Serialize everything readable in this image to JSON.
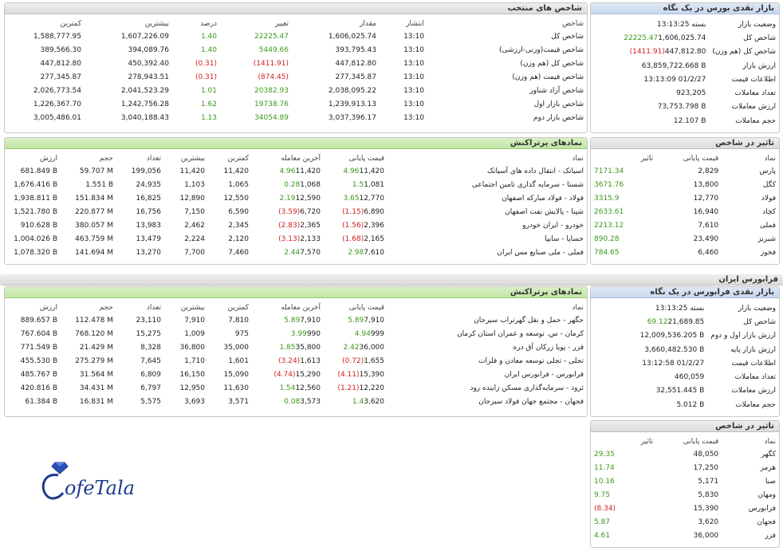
{
  "colors": {
    "positive": "#3a9a1a",
    "negative": "#d02020",
    "header_blue": "#c9d8ee",
    "header_green": "#c1e5a4",
    "header_gray": "#dcdcdc"
  },
  "bourse_snapshot": {
    "title": "بازار نقدی بورس در یک نگاه",
    "rows": [
      {
        "label": "وضعیت بازار",
        "value": "بسته 13:13:25",
        "change": ""
      },
      {
        "label": "شاخص کل",
        "value": "1,606,025.74",
        "change": "22225.47",
        "sign": "pos"
      },
      {
        "label": "شاخص کل (هم وزن)",
        "value": "447,812.80",
        "change": "(1411.91)",
        "sign": "neg"
      },
      {
        "label": "ارزش بازار",
        "value": "63,859,722.668 B",
        "change": ""
      },
      {
        "label": "اطلاعات قیمت",
        "value": "13:13:09 01/2/27",
        "change": ""
      },
      {
        "label": "تعداد معاملات",
        "value": "923,205",
        "change": ""
      },
      {
        "label": "ارزش معاملات",
        "value": "73,753.798 B",
        "change": ""
      },
      {
        "label": "حجم معاملات",
        "value": "12.107 B",
        "change": ""
      }
    ]
  },
  "selected_indices": {
    "title": "شاخص های منتخب",
    "headers": [
      "شاخص",
      "انتشار",
      "مقدار",
      "تغییر",
      "درصد",
      "بیشترین",
      "کمترین"
    ],
    "rows": [
      {
        "name": "شاخص کل",
        "time": "13:10",
        "value": "1,606,025.74",
        "change": "22225.47",
        "pct": "1.40",
        "high": "1,607,226.09",
        "low": "1,588,777.95",
        "sign": "pos"
      },
      {
        "name": "شاخص قیمت(وزنی-ارزشی)",
        "time": "13:10",
        "value": "393,795.43",
        "change": "5449.66",
        "pct": "1.40",
        "high": "394,089.76",
        "low": "389,566.30",
        "sign": "pos"
      },
      {
        "name": "شاخص کل (هم وزن)",
        "time": "13:10",
        "value": "447,812.80",
        "change": "(1411.91)",
        "pct": "(0.31)",
        "high": "450,392.40",
        "low": "447,812.80",
        "sign": "neg"
      },
      {
        "name": "شاخص قیمت (هم وزن)",
        "time": "13:10",
        "value": "277,345.87",
        "change": "(874.45)",
        "pct": "(0.31)",
        "high": "278,943.51",
        "low": "277,345.87",
        "sign": "neg"
      },
      {
        "name": "شاخص آزاد شناور",
        "time": "13:10",
        "value": "2,038,095.22",
        "change": "20382.93",
        "pct": "1.01",
        "high": "2,041,523.29",
        "low": "2,026,773.54",
        "sign": "pos"
      },
      {
        "name": "شاخص بازار اول",
        "time": "13:10",
        "value": "1,239,913.13",
        "change": "19738.76",
        "pct": "1.62",
        "high": "1,242,756.28",
        "low": "1,226,367.70",
        "sign": "pos"
      },
      {
        "name": "شاخص بازار دوم",
        "time": "13:10",
        "value": "3,037,396.17",
        "change": "34054.89",
        "pct": "1.13",
        "high": "3,040,188.43",
        "low": "3,005,486.01",
        "sign": "pos"
      }
    ]
  },
  "bourse_impact": {
    "title": "تاثیر در شاخص",
    "headers": [
      "نماد",
      "قیمت پایانی",
      "تاثیر"
    ],
    "rows": [
      {
        "symbol": "پارس",
        "price": "2,829",
        "impact": "7171.34",
        "sign": "pos"
      },
      {
        "symbol": "کگل",
        "price": "13,800",
        "impact": "3671.76",
        "sign": "pos"
      },
      {
        "symbol": "فولاد",
        "price": "12,770",
        "impact": "3315.9",
        "sign": "pos"
      },
      {
        "symbol": "کچاد",
        "price": "16,940",
        "impact": "2633.61",
        "sign": "pos"
      },
      {
        "symbol": "فملی",
        "price": "7,610",
        "impact": "2213.12",
        "sign": "pos"
      },
      {
        "symbol": "شبریز",
        "price": "23,490",
        "impact": "890.28",
        "sign": "pos"
      },
      {
        "symbol": "فخوز",
        "price": "6,460",
        "impact": "784.65",
        "sign": "pos"
      }
    ]
  },
  "bourse_active": {
    "title": "نمادهای پرتراکنش",
    "headers": [
      "نماد",
      "قیمت پایانی",
      "آخرین معامله",
      "کمترین",
      "بیشترین",
      "تعداد",
      "حجم",
      "ارزش"
    ],
    "rows": [
      {
        "name": "اسیاتک - انتقال داده های آسیاتک",
        "close": "11,420",
        "close_pct": "4.96",
        "last": "11,420",
        "last_pct": "4.96",
        "low": "11,420",
        "high": "11,420",
        "count": "199,056",
        "volume": "59.707 M",
        "value": "681.849 B",
        "cs": "pos",
        "ls": "pos"
      },
      {
        "name": "شستا - سرمایه گذاری تامین اجتماعی",
        "close": "1,081",
        "close_pct": "1.5",
        "last": "1,068",
        "last_pct": "0.28",
        "low": "1,065",
        "high": "1,103",
        "count": "24,935",
        "volume": "1.551 B",
        "value": "1,676.416 B",
        "cs": "pos",
        "ls": "pos"
      },
      {
        "name": "فولاد - فولاد مبارکه اصفهان",
        "close": "12,770",
        "close_pct": "3.65",
        "last": "12,590",
        "last_pct": "2.19",
        "low": "12,550",
        "high": "12,890",
        "count": "16,825",
        "volume": "151.834 M",
        "value": "1,938.811 B",
        "cs": "pos",
        "ls": "pos"
      },
      {
        "name": "شپنا - پالایش نفت اصفهان",
        "close": "6,890",
        "close_pct": "(1.15)",
        "last": "6,720",
        "last_pct": "(3.59)",
        "low": "6,590",
        "high": "7,150",
        "count": "16,756",
        "volume": "220.877 M",
        "value": "1,521.780 B",
        "cs": "neg",
        "ls": "neg"
      },
      {
        "name": "خودرو - ایران خودرو",
        "close": "2,396",
        "close_pct": "(1.56)",
        "last": "2,365",
        "last_pct": "(2.83)",
        "low": "2,345",
        "high": "2,462",
        "count": "13,983",
        "volume": "380.057 M",
        "value": "910.628 B",
        "cs": "neg",
        "ls": "neg"
      },
      {
        "name": "خساپا - سایپا",
        "close": "2,165",
        "close_pct": "(1.68)",
        "last": "2,133",
        "last_pct": "(3.13)",
        "low": "2,120",
        "high": "2,224",
        "count": "13,479",
        "volume": "463.759 M",
        "value": "1,004.026 B",
        "cs": "neg",
        "ls": "neg"
      },
      {
        "name": "فملی - ملی صنایع مس ایران",
        "close": "7,610",
        "close_pct": "2.98",
        "last": "7,570",
        "last_pct": "2.44",
        "low": "7,460",
        "high": "7,700",
        "count": "13,270",
        "volume": "141.694 M",
        "value": "1,078.320 B",
        "cs": "pos",
        "ls": "pos"
      }
    ]
  },
  "farabourse_bar": {
    "title": "فرابورس ایران"
  },
  "farabourse_snapshot": {
    "title": "بازار نقدی فرابورس در یک نگاه",
    "rows": [
      {
        "label": "وضعیت بازار",
        "value": "بسته 13:13:25",
        "change": ""
      },
      {
        "label": "شاخص کل",
        "value": "21,689.85",
        "change": "69.12",
        "sign": "pos"
      },
      {
        "label": "ارزش بازار اول و دوم",
        "value": "12,009,536.205 B",
        "change": ""
      },
      {
        "label": "ارزش بازار پایه",
        "value": "3,660,482.530 B",
        "change": ""
      },
      {
        "label": "اطلاعات قیمت",
        "value": "13:12:58 01/2/27",
        "change": ""
      },
      {
        "label": "تعداد معاملات",
        "value": "460,059",
        "change": ""
      },
      {
        "label": "ارزش معاملات",
        "value": "32,551.445 B",
        "change": ""
      },
      {
        "label": "حجم معاملات",
        "value": "5.012 B",
        "change": ""
      }
    ]
  },
  "farabourse_active": {
    "title": "نمادهای پرتراکنش",
    "headers": [
      "نماد",
      "قیمت پایانی",
      "آخرین معامله",
      "کمترین",
      "بیشترین",
      "تعداد",
      "حجم",
      "ارزش"
    ],
    "rows": [
      {
        "name": "حگهر - حمل و نقل گهرتراب سیرجان",
        "close": "7,910",
        "close_pct": "5.89",
        "last": "7,910",
        "last_pct": "5.89",
        "low": "7,810",
        "high": "7,910",
        "count": "23,110",
        "volume": "112.478 M",
        "value": "889.657 B",
        "cs": "pos",
        "ls": "pos"
      },
      {
        "name": "کرمان - س. توسعه و عمران استان کرمان",
        "close": "999",
        "close_pct": "4.94",
        "last": "990",
        "last_pct": "3.99",
        "low": "975",
        "high": "1,009",
        "count": "15,275",
        "volume": "768.120 M",
        "value": "767.604 B",
        "cs": "pos",
        "ls": "pos"
      },
      {
        "name": "فزر - پویا زرکان آق دره",
        "close": "36,000",
        "close_pct": "2.42",
        "last": "35,800",
        "last_pct": "1.85",
        "low": "35,000",
        "high": "36,800",
        "count": "8,328",
        "volume": "21.429 M",
        "value": "771.549 B",
        "cs": "pos",
        "ls": "pos"
      },
      {
        "name": "تجلی - تجلی توسعه معادن و فلزات",
        "close": "1,655",
        "close_pct": "(0.72)",
        "last": "1,613",
        "last_pct": "(3.24)",
        "low": "1,601",
        "high": "1,710",
        "count": "7,645",
        "volume": "275.279 M",
        "value": "455.530 B",
        "cs": "neg",
        "ls": "neg"
      },
      {
        "name": "فرابورس - فرابورس ایران",
        "close": "15,390",
        "close_pct": "(4.11)",
        "last": "15,290",
        "last_pct": "(4.74)",
        "low": "15,090",
        "high": "16,150",
        "count": "6,809",
        "volume": "31.564 M",
        "value": "485.767 B",
        "cs": "neg",
        "ls": "neg"
      },
      {
        "name": "ثرود - سرمایه‌گذاری مسکن زاینده رود",
        "close": "12,220",
        "close_pct": "(1.21)",
        "last": "12,560",
        "last_pct": "1.54",
        "low": "11,630",
        "high": "12,950",
        "count": "6,797",
        "volume": "34.431 M",
        "value": "420.816 B",
        "cs": "neg",
        "ls": "pos"
      },
      {
        "name": "فجهان - مجتمع جهان فولاد سیرجان",
        "close": "3,620",
        "close_pct": "1.4",
        "last": "3,573",
        "last_pct": "0.08",
        "low": "3,571",
        "high": "3,693",
        "count": "5,575",
        "volume": "16.831 M",
        "value": "61.384 B",
        "cs": "pos",
        "ls": "pos"
      }
    ]
  },
  "farabourse_impact": {
    "title": "تاثیر در شاخص",
    "headers": [
      "نماد",
      "قیمت پایانی",
      "تاثیر"
    ],
    "rows": [
      {
        "symbol": "کگهر",
        "price": "48,050",
        "impact": "29.35",
        "sign": "pos"
      },
      {
        "symbol": "هرمز",
        "price": "17,250",
        "impact": "11.74",
        "sign": "pos"
      },
      {
        "symbol": "صبا",
        "price": "5,171",
        "impact": "10.16",
        "sign": "pos"
      },
      {
        "symbol": "ومهان",
        "price": "5,830",
        "impact": "9.75",
        "sign": "pos"
      },
      {
        "symbol": "فرابورس",
        "price": "15,390",
        "impact": "(8.34)",
        "sign": "neg"
      },
      {
        "symbol": "فجهان",
        "price": "3,620",
        "impact": "5.87",
        "sign": "pos"
      },
      {
        "symbol": "فزر",
        "price": "36,000",
        "impact": "4.61",
        "sign": "pos"
      }
    ]
  },
  "logo": {
    "text": "CofeTala"
  }
}
